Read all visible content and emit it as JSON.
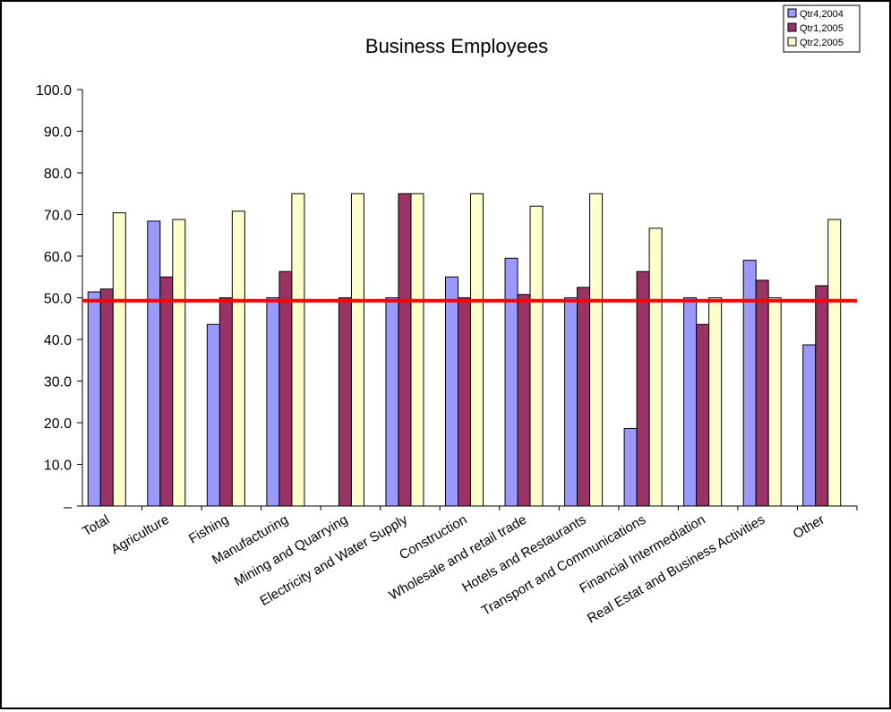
{
  "chart_data": {
    "type": "bar",
    "title": "Business Employees",
    "xlabel": "",
    "ylabel": "",
    "ylim": [
      0,
      100
    ],
    "yticks": [
      "–",
      "10.0",
      "20.0",
      "30.0",
      "40.0",
      "50.0",
      "60.0",
      "70.0",
      "80.0",
      "90.0",
      "100.0"
    ],
    "grid": false,
    "legend_position": "top-right",
    "categories": [
      "Total",
      "Agriculture",
      "Fishing",
      "Manufacturing",
      "Mining and Quarrying",
      "Electricity and Water Supply",
      "Construction",
      "Wholesale and retail trade",
      "Hotels and Restaurants",
      "Transport and Communications",
      "Financial Intermediation",
      "Real Estat and Business Activities",
      "Other"
    ],
    "series": [
      {
        "name": "Qtr4,2004",
        "color": "#9999ff",
        "values": [
          51.4,
          68.4,
          43.6,
          50.0,
          null,
          50.0,
          55.0,
          59.5,
          50.0,
          18.6,
          50.0,
          59.0,
          38.7
        ]
      },
      {
        "name": "Qtr1,2005",
        "color": "#993366",
        "values": [
          52.1,
          55.0,
          50.0,
          56.3,
          50.0,
          75.0,
          50.0,
          50.8,
          52.5,
          56.3,
          43.6,
          54.2,
          52.9
        ]
      },
      {
        "name": "Qtr2,2005",
        "color": "#ffffcc",
        "values": [
          70.4,
          68.8,
          70.8,
          75.0,
          75.0,
          75.0,
          75.0,
          72.0,
          75.0,
          66.7,
          50.0,
          50.0,
          68.8
        ]
      }
    ],
    "reference_line": {
      "value": 49.3,
      "color": "#ff0000"
    }
  }
}
